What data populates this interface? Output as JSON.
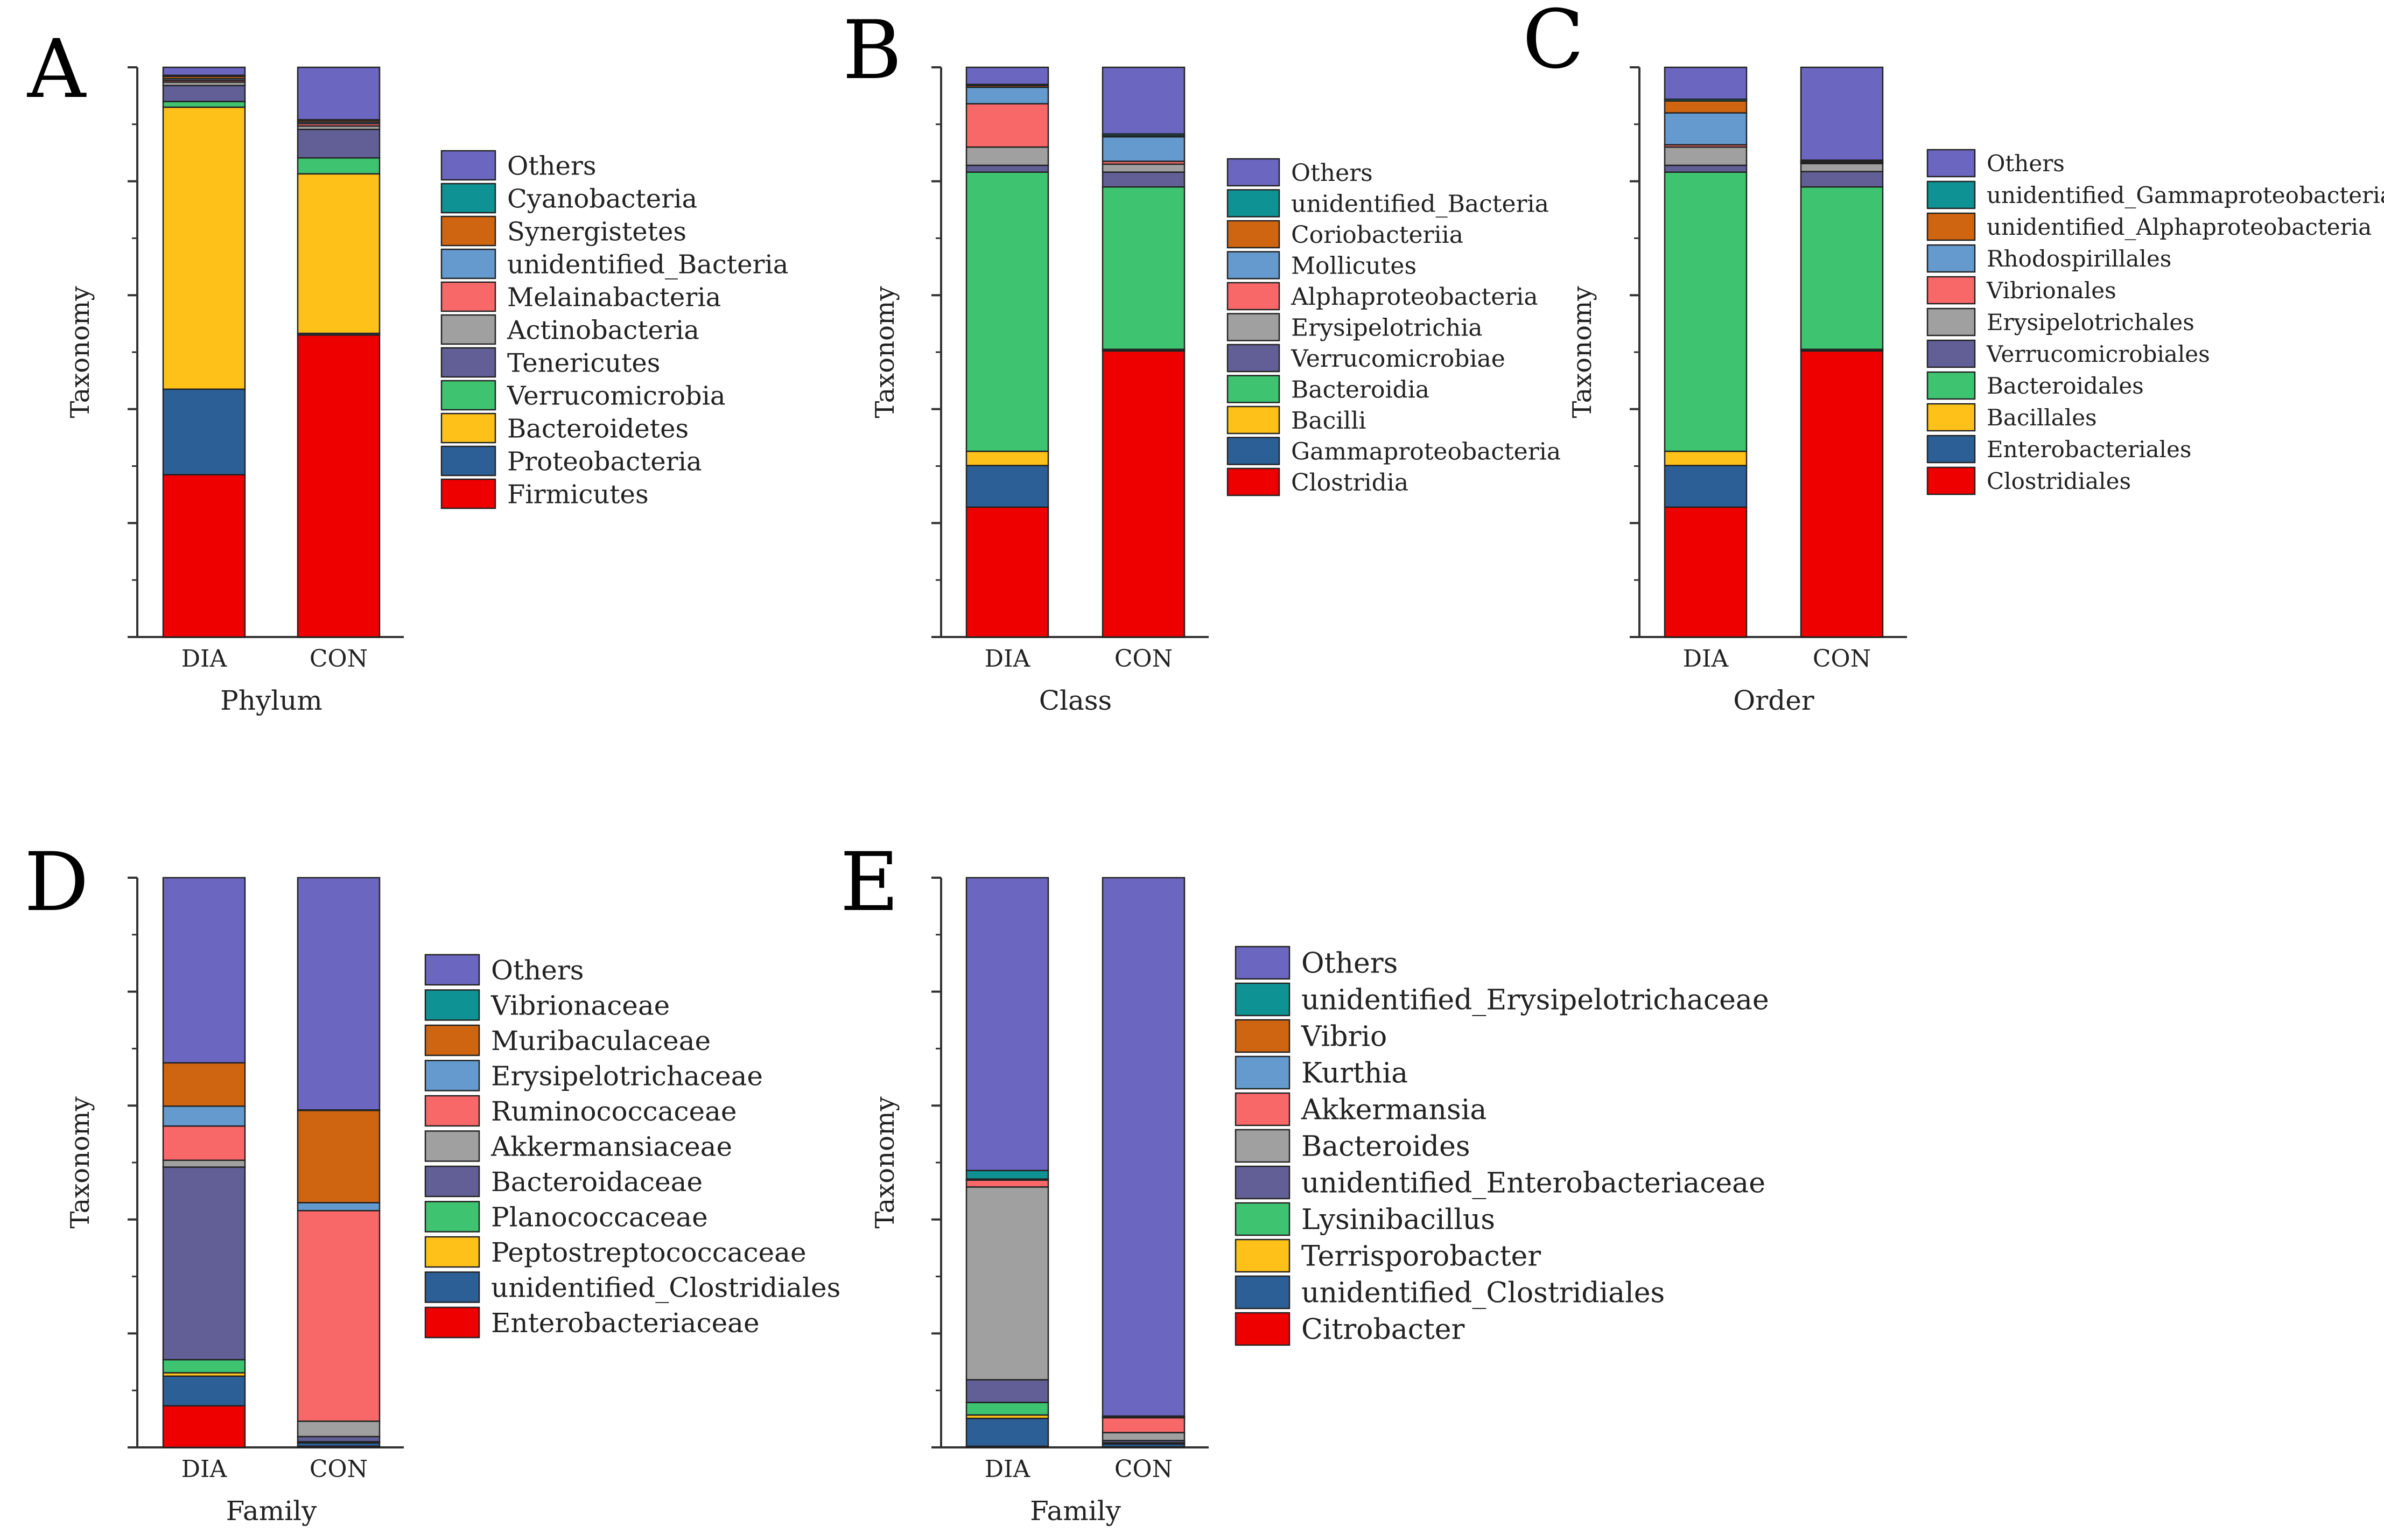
{
  "colors": {
    "Others": "#6B66BF",
    "teal": "#0F9293",
    "orange": "#CF6510",
    "lightblue": "#649ACD",
    "salmon": "#F96868",
    "gray": "#A0A0A0",
    "slate": "#625F96",
    "green": "#3EC470",
    "yellow": "#FDC11A",
    "navy": "#2D5F97",
    "red": "#EE0000"
  },
  "chart_data": [
    {
      "panel": "A",
      "type": "bar",
      "stacked": true,
      "ylabel": "Taxonomy",
      "xlabel": "Phylum",
      "categories": [
        "DIA",
        "CON"
      ],
      "series": [
        {
          "name": "Firmicutes",
          "color": "red",
          "values": [
            28.5,
            53.0
          ]
        },
        {
          "name": "Proteobacteria",
          "color": "navy",
          "values": [
            15.0,
            0.3
          ]
        },
        {
          "name": "Bacteroidetes",
          "color": "yellow",
          "values": [
            49.5,
            28.0
          ]
        },
        {
          "name": "Verrucomicrobia",
          "color": "green",
          "values": [
            1.0,
            2.8
          ]
        },
        {
          "name": "Tenericutes",
          "color": "slate",
          "values": [
            2.8,
            5.0
          ]
        },
        {
          "name": "Actinobacteria",
          "color": "gray",
          "values": [
            0.6,
            0.6
          ]
        },
        {
          "name": "Melainabacteria",
          "color": "salmon",
          "values": [
            0.3,
            0.4
          ]
        },
        {
          "name": "unidentified_Bacteria",
          "color": "lightblue",
          "values": [
            0.3,
            0.3
          ]
        },
        {
          "name": "Synergistetes",
          "color": "orange",
          "values": [
            0.4,
            0.3
          ]
        },
        {
          "name": "Cyanobacteria",
          "color": "teal",
          "values": [
            0.2,
            0.1
          ]
        },
        {
          "name": "Others",
          "color": "Others",
          "values": [
            1.4,
            9.2
          ]
        }
      ]
    },
    {
      "panel": "B",
      "type": "bar",
      "stacked": true,
      "ylabel": "Taxonomy",
      "xlabel": "Class",
      "categories": [
        "DIA",
        "CON"
      ],
      "series": [
        {
          "name": "Clostridia",
          "color": "red",
          "values": [
            22.8,
            50.2
          ]
        },
        {
          "name": "Gammaproteobacteria",
          "color": "navy",
          "values": [
            7.3,
            0.2
          ]
        },
        {
          "name": "Bacilli",
          "color": "yellow",
          "values": [
            2.5,
            0.1
          ]
        },
        {
          "name": "Bacteroidia",
          "color": "green",
          "values": [
            49.0,
            28.5
          ]
        },
        {
          "name": "Verrucomicrobiae",
          "color": "slate",
          "values": [
            1.2,
            2.6
          ]
        },
        {
          "name": "Erysipelotrichia",
          "color": "gray",
          "values": [
            3.2,
            1.4
          ]
        },
        {
          "name": "Alphaproteobacteria",
          "color": "salmon",
          "values": [
            7.6,
            0.5
          ]
        },
        {
          "name": "Mollicutes",
          "color": "lightblue",
          "values": [
            2.9,
            4.3
          ]
        },
        {
          "name": "Coriobacteriia",
          "color": "orange",
          "values": [
            0.3,
            0.2
          ]
        },
        {
          "name": "unidentified_Bacteria",
          "color": "teal",
          "values": [
            0.2,
            0.3
          ]
        },
        {
          "name": "Others",
          "color": "Others",
          "values": [
            3.0,
            11.7
          ]
        }
      ]
    },
    {
      "panel": "C",
      "type": "bar",
      "stacked": true,
      "ylabel": "Taxonomy",
      "xlabel": "Order",
      "categories": [
        "DIA",
        "CON"
      ],
      "series": [
        {
          "name": "Clostridiales",
          "color": "red",
          "values": [
            22.8,
            50.2
          ]
        },
        {
          "name": "Enterobacteriales",
          "color": "navy",
          "values": [
            7.3,
            0.2
          ]
        },
        {
          "name": "Bacillales",
          "color": "yellow",
          "values": [
            2.5,
            0.1
          ]
        },
        {
          "name": "Bacteroidales",
          "color": "green",
          "values": [
            49.0,
            28.5
          ]
        },
        {
          "name": "Verrucomicrobiales",
          "color": "slate",
          "values": [
            1.2,
            2.7
          ]
        },
        {
          "name": "Erysipelotrichales",
          "color": "gray",
          "values": [
            3.2,
            1.4
          ]
        },
        {
          "name": "Vibrionales",
          "color": "salmon",
          "values": [
            0.4,
            0.1
          ]
        },
        {
          "name": "Rhodospirillales",
          "color": "lightblue",
          "values": [
            5.6,
            0.2
          ]
        },
        {
          "name": "unidentified_Alphaproteobacteria",
          "color": "orange",
          "values": [
            2.1,
            0.2
          ]
        },
        {
          "name": "unidentified_Gammaproteobacteria",
          "color": "teal",
          "values": [
            0.3,
            0.1
          ]
        },
        {
          "name": "Others",
          "color": "Others",
          "values": [
            5.6,
            16.3
          ]
        }
      ]
    },
    {
      "panel": "D",
      "type": "bar",
      "stacked": true,
      "ylabel": "Taxonomy",
      "xlabel": "Family",
      "categories": [
        "DIA",
        "CON"
      ],
      "series": [
        {
          "name": "Enterobacteriaceae",
          "color": "red",
          "values": [
            7.3,
            0.2
          ]
        },
        {
          "name": "unidentified_Clostridiales",
          "color": "navy",
          "values": [
            5.2,
            0.6
          ]
        },
        {
          "name": "Peptostreptococcaceae",
          "color": "yellow",
          "values": [
            0.6,
            0.1
          ]
        },
        {
          "name": "Planococcaceae",
          "color": "green",
          "values": [
            2.3,
            0.1
          ]
        },
        {
          "name": "Bacteroidaceae",
          "color": "slate",
          "values": [
            33.8,
            0.9
          ]
        },
        {
          "name": "Akkermansiaceae",
          "color": "gray",
          "values": [
            1.2,
            2.7
          ]
        },
        {
          "name": "Ruminococcaceae",
          "color": "salmon",
          "values": [
            6.0,
            37.0
          ]
        },
        {
          "name": "Erysipelotrichaceae",
          "color": "lightblue",
          "values": [
            3.5,
            1.4
          ]
        },
        {
          "name": "Muribaculaceae",
          "color": "orange",
          "values": [
            7.6,
            16.2
          ]
        },
        {
          "name": "Vibrionaceae",
          "color": "teal",
          "values": [
            0.0,
            0.1
          ]
        },
        {
          "name": "Others",
          "color": "Others",
          "values": [
            32.5,
            40.8
          ]
        }
      ]
    },
    {
      "panel": "E",
      "type": "bar",
      "stacked": true,
      "ylabel": "Taxonomy",
      "xlabel": "Family",
      "categories": [
        "DIA",
        "CON"
      ],
      "series": [
        {
          "name": "Citrobacter",
          "color": "red",
          "values": [
            0.2,
            0.1
          ]
        },
        {
          "name": "unidentified_Clostridiales",
          "color": "navy",
          "values": [
            4.9,
            0.5
          ]
        },
        {
          "name": "Terrisporobacter",
          "color": "yellow",
          "values": [
            0.6,
            0.1
          ]
        },
        {
          "name": "Lysinibacillus",
          "color": "green",
          "values": [
            2.2,
            0.1
          ]
        },
        {
          "name": "unidentified_Enterobacteriaceae",
          "color": "slate",
          "values": [
            4.0,
            0.4
          ]
        },
        {
          "name": "Bacteroides",
          "color": "gray",
          "values": [
            33.9,
            1.4
          ]
        },
        {
          "name": "Akkermansia",
          "color": "salmon",
          "values": [
            1.2,
            2.6
          ]
        },
        {
          "name": "Kurthia",
          "color": "lightblue",
          "values": [
            0.1,
            0.1
          ]
        },
        {
          "name": "Vibrio",
          "color": "orange",
          "values": [
            0.1,
            0.1
          ]
        },
        {
          "name": "unidentified_Erysipelotrichaceae",
          "color": "teal",
          "values": [
            1.5,
            0.1
          ]
        },
        {
          "name": "Others",
          "color": "Others",
          "values": [
            51.5,
            94.5
          ]
        }
      ]
    }
  ]
}
